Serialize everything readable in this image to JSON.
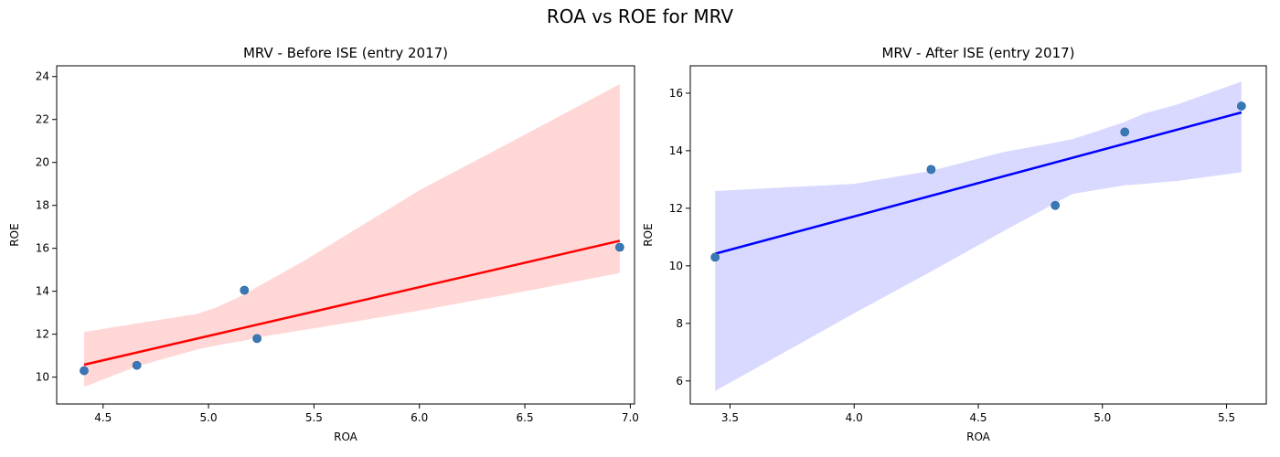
{
  "figure": {
    "suptitle": "ROA vs ROE for MRV"
  },
  "chart_data": [
    {
      "type": "scatter",
      "title": "MRV - Before ISE (entry 2017)",
      "xlabel": "ROA",
      "ylabel": "ROE",
      "xlim": [
        4.28,
        7.02
      ],
      "ylim": [
        8.75,
        24.5
      ],
      "xticks": [
        4.5,
        5.0,
        5.5,
        6.0,
        6.5,
        7.0
      ],
      "yticks": [
        10,
        12,
        14,
        16,
        18,
        20,
        22,
        24
      ],
      "xtick_labels": [
        "4.5",
        "5.0",
        "5.5",
        "6.0",
        "6.5",
        "7.0"
      ],
      "ytick_labels": [
        "10",
        "12",
        "14",
        "16",
        "18",
        "20",
        "22",
        "24"
      ],
      "points": [
        {
          "x": 4.41,
          "y": 10.3
        },
        {
          "x": 4.66,
          "y": 10.55
        },
        {
          "x": 5.17,
          "y": 14.05
        },
        {
          "x": 5.23,
          "y": 11.8
        },
        {
          "x": 6.95,
          "y": 16.05
        }
      ],
      "regression": {
        "x": [
          4.41,
          6.95
        ],
        "y": [
          10.58,
          16.35
        ]
      },
      "confidence_band": {
        "x": [
          4.41,
          4.66,
          4.95,
          5.05,
          5.17,
          5.23,
          5.45,
          5.7,
          6.0,
          6.5,
          6.95
        ],
        "upper": [
          12.1,
          12.5,
          12.95,
          13.3,
          13.85,
          14.2,
          15.4,
          16.9,
          18.7,
          21.3,
          23.65
        ],
        "lower": [
          9.55,
          10.5,
          11.3,
          11.5,
          11.7,
          11.85,
          12.2,
          12.6,
          13.1,
          14.0,
          14.85
        ]
      },
      "colors": {
        "points": "#3a78b5",
        "line": "#ff0000",
        "band": "#ffd7d7"
      }
    },
    {
      "type": "scatter",
      "title": "MRV - After ISE (entry 2017)",
      "xlabel": "ROA",
      "ylabel": "ROE",
      "xlim": [
        3.34,
        5.66
      ],
      "ylim": [
        5.2,
        16.95
      ],
      "xticks": [
        3.5,
        4.0,
        4.5,
        5.0,
        5.5
      ],
      "yticks": [
        6,
        8,
        10,
        12,
        14,
        16
      ],
      "xtick_labels": [
        "3.5",
        "4.0",
        "4.5",
        "5.0",
        "5.5"
      ],
      "ytick_labels": [
        "6",
        "8",
        "10",
        "12",
        "14",
        "16"
      ],
      "points": [
        {
          "x": 3.44,
          "y": 10.3
        },
        {
          "x": 4.31,
          "y": 13.35
        },
        {
          "x": 4.81,
          "y": 12.1
        },
        {
          "x": 5.09,
          "y": 14.65
        },
        {
          "x": 5.56,
          "y": 15.55
        }
      ],
      "regression": {
        "x": [
          3.44,
          5.56
        ],
        "y": [
          10.42,
          15.33
        ]
      },
      "confidence_band": {
        "x": [
          3.44,
          4.0,
          4.31,
          4.6,
          4.88,
          5.09,
          5.17,
          5.3,
          5.56
        ],
        "upper": [
          12.6,
          12.85,
          13.3,
          13.95,
          14.4,
          15.0,
          15.3,
          15.6,
          16.4
        ],
        "lower": [
          5.65,
          8.35,
          9.8,
          11.2,
          12.5,
          12.8,
          12.85,
          12.95,
          13.25
        ]
      },
      "colors": {
        "points": "#3a78b5",
        "line": "#0000ff",
        "band": "#d9d9ff"
      }
    }
  ]
}
